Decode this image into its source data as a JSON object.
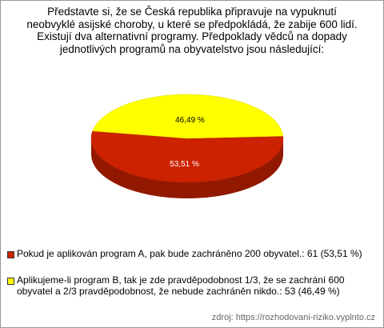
{
  "chart_data": {
    "type": "pie3d",
    "title_lines": [
      "Představte si, že se Česká republika připravuje na vypuknutí",
      "neobvyklé asijské choroby, u které se předpokládá, že zabije 600 lidí.",
      "Existují dva alternativní programy. Předpoklady vědců na dopady",
      "jednotlivých programů na obyvatelstvo jsou následující:"
    ],
    "legend": [
      "Pokud je aplikován program A, pak bude zachráněno 200 obyvatel.: 61 (53,51 %)",
      "Aplikujeme-li program B, tak je zde pravděpodobnost 1/3, že se zachrání 600 obyvatel a 2/3 pravděpodobnost, že nebude zachráněn nikdo.: 53 (46,49 %)"
    ],
    "values": [
      53.51,
      46.49
    ],
    "value_labels": [
      "53,51 %",
      "46,49 %"
    ],
    "colors": [
      "#cc2200",
      "#ffff00"
    ],
    "source": "zdroj: https://rozhodovani-riziko.vyplnto.cz"
  }
}
